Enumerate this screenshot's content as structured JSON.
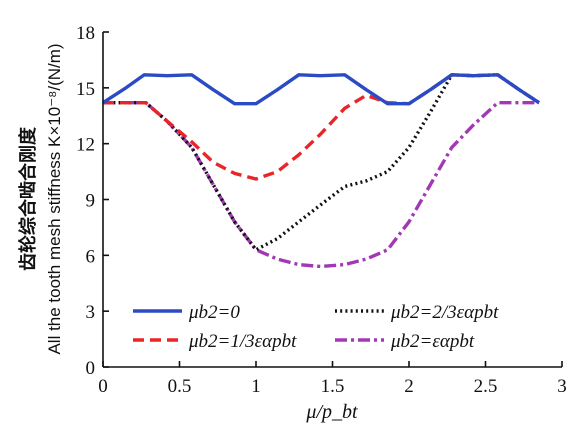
{
  "chart_data": {
    "type": "line",
    "ylabel_cn": "齿轮综合啮合刚度",
    "ylabel_en": "All the tooth mesh stiffness K×10⁻⁸/(N/m)",
    "xlabel": "μ/p_bt",
    "xlim": [
      0,
      3
    ],
    "ylim": [
      0,
      18
    ],
    "x_ticks": [
      "0",
      "0.5",
      "1",
      "1.5",
      "2",
      "2.5",
      "3"
    ],
    "y_ticks": [
      "0",
      "3",
      "6",
      "9",
      "12",
      "15",
      "18"
    ],
    "grid": false,
    "legend_position": "bottom-inside, two columns",
    "series": [
      {
        "name": "μb2=0",
        "color": "#2B4BC4",
        "style": "solid",
        "x": [
          0,
          0.15,
          0.27,
          0.42,
          0.58,
          0.72,
          0.86,
          1.0,
          1.14,
          1.28,
          1.42,
          1.58,
          1.72,
          1.86,
          2.0,
          2.14,
          2.28,
          2.42,
          2.58,
          2.72,
          2.85
        ],
        "y": [
          14.2,
          15.0,
          15.7,
          15.65,
          15.7,
          14.9,
          14.15,
          14.15,
          14.9,
          15.7,
          15.65,
          15.7,
          14.9,
          14.15,
          14.15,
          14.9,
          15.7,
          15.65,
          15.7,
          14.9,
          14.2
        ]
      },
      {
        "name": "μb2=1/3εαpbt",
        "color": "#E8262A",
        "style": "dash",
        "x": [
          0,
          0.15,
          0.28,
          0.42,
          0.58,
          0.72,
          0.86,
          1.0,
          1.14,
          1.28,
          1.42,
          1.58,
          1.72,
          1.86,
          2.0,
          2.14,
          2.28,
          2.42,
          2.58,
          2.72,
          2.85
        ],
        "y": [
          14.2,
          14.2,
          14.2,
          13.2,
          12.1,
          11.0,
          10.4,
          10.1,
          10.5,
          11.4,
          12.5,
          13.9,
          14.6,
          14.2,
          14.15,
          14.9,
          15.7,
          15.65,
          15.7,
          14.9,
          14.2
        ]
      },
      {
        "name": "μb2=2/3εαpbt",
        "color": "#111111",
        "style": "dot",
        "x": [
          0,
          0.15,
          0.28,
          0.42,
          0.58,
          0.72,
          0.86,
          1.0,
          1.14,
          1.28,
          1.42,
          1.58,
          1.72,
          1.86,
          2.0,
          2.14,
          2.28,
          2.42,
          2.58,
          2.72,
          2.85
        ],
        "y": [
          14.2,
          14.2,
          14.2,
          13.2,
          11.8,
          9.8,
          7.8,
          6.3,
          6.9,
          7.8,
          8.7,
          9.7,
          10.0,
          10.5,
          11.8,
          13.7,
          15.7,
          15.65,
          15.7,
          14.9,
          14.2
        ]
      },
      {
        "name": "μb2=εαpbt",
        "color": "#A238B5",
        "style": "dashdot",
        "x": [
          0,
          0.15,
          0.28,
          0.42,
          0.58,
          0.72,
          0.86,
          1.0,
          1.14,
          1.28,
          1.42,
          1.58,
          1.72,
          1.86,
          2.0,
          2.14,
          2.28,
          2.42,
          2.58,
          2.72,
          2.85
        ],
        "y": [
          14.2,
          14.2,
          14.2,
          13.2,
          11.8,
          9.8,
          7.8,
          6.3,
          5.8,
          5.5,
          5.4,
          5.5,
          5.8,
          6.3,
          7.8,
          9.8,
          11.8,
          13.0,
          14.2,
          14.2,
          14.2
        ]
      }
    ]
  }
}
